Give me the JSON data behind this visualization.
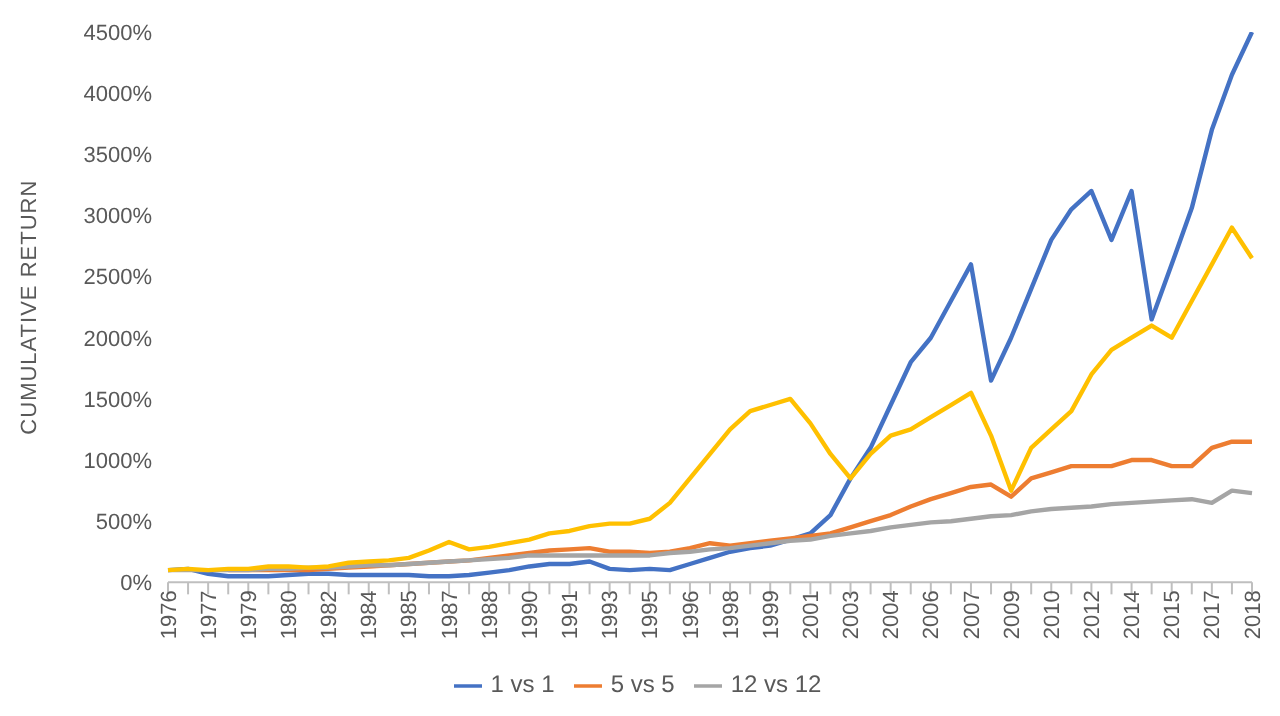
{
  "chart_data": {
    "type": "line",
    "ylabel": "CUMULATIVE RETURN",
    "categories": [
      "1976",
      null,
      "1977",
      null,
      "1979",
      null,
      "1980",
      null,
      "1982",
      null,
      "1984",
      null,
      "1985",
      null,
      "1987",
      null,
      "1988",
      null,
      "1990",
      null,
      "1991",
      null,
      "1993",
      null,
      "1995",
      null,
      "1996",
      null,
      "1998",
      null,
      "1999",
      null,
      "2001",
      null,
      "2003",
      null,
      "2004",
      null,
      "2006",
      null,
      "2007",
      null,
      "2009",
      null,
      "2010",
      null,
      "2012",
      null,
      "2014",
      null,
      "2015",
      null,
      "2017",
      null,
      "2018"
    ],
    "series": [
      {
        "name": "1 vs 1",
        "color": "#4472c4",
        "values": [
          100,
          110,
          70,
          50,
          50,
          50,
          60,
          70,
          70,
          60,
          60,
          60,
          60,
          50,
          50,
          60,
          80,
          100,
          130,
          150,
          150,
          170,
          110,
          100,
          110,
          100,
          150,
          200,
          250,
          280,
          300,
          350,
          400,
          550,
          850,
          1100,
          1450,
          1800,
          2000,
          2300,
          2600,
          1650,
          2000,
          2400,
          2800,
          3050,
          3200,
          2800,
          3200,
          2150,
          2600,
          3060,
          3700,
          4150,
          4500
        ]
      },
      {
        "name": "5 vs 5",
        "color": "#ed7d31",
        "values": [
          null,
          null,
          null,
          100,
          100,
          100,
          100,
          100,
          110,
          120,
          130,
          140,
          150,
          160,
          170,
          180,
          200,
          220,
          240,
          260,
          270,
          280,
          250,
          250,
          240,
          250,
          280,
          320,
          300,
          320,
          340,
          360,
          380,
          400,
          450,
          500,
          550,
          620,
          680,
          730,
          780,
          800,
          700,
          850,
          900,
          950,
          950,
          950,
          1000,
          1000,
          950,
          950,
          1100,
          1150,
          1150
        ]
      },
      {
        "name": "12 vs 12",
        "color": "#a5a5a5",
        "values": [
          100,
          100,
          100,
          100,
          100,
          110,
          110,
          120,
          120,
          130,
          140,
          140,
          150,
          160,
          170,
          180,
          190,
          200,
          220,
          220,
          220,
          220,
          220,
          220,
          220,
          240,
          250,
          270,
          280,
          300,
          320,
          340,
          350,
          380,
          400,
          420,
          450,
          470,
          490,
          500,
          520,
          540,
          550,
          580,
          600,
          610,
          620,
          640,
          650,
          660,
          670,
          680,
          650,
          750,
          730
        ]
      },
      {
        "color": "#ffc000",
        "values": [
          100,
          110,
          100,
          110,
          110,
          130,
          130,
          120,
          130,
          160,
          170,
          180,
          200,
          260,
          330,
          270,
          290,
          320,
          350,
          400,
          420,
          460,
          480,
          480,
          520,
          650,
          850,
          1050,
          1250,
          1400,
          1450,
          1500,
          1300,
          1050,
          850,
          1050,
          1200,
          1250,
          1350,
          1450,
          1550,
          1200,
          750,
          1100,
          1250,
          1400,
          1700,
          1900,
          2000,
          2100,
          2000,
          2300,
          2600,
          2900,
          2650
        ]
      }
    ],
    "ylim": [
      0,
      4500
    ],
    "yticks": [
      {
        "value": 0,
        "label": "0%"
      },
      {
        "value": 500,
        "label": "500%"
      },
      {
        "value": 1000,
        "label": "1000%"
      },
      {
        "value": 1500,
        "label": "1500%"
      },
      {
        "value": 2000,
        "label": "2000%"
      },
      {
        "value": 2500,
        "label": "2500%"
      },
      {
        "value": 3000,
        "label": "3000%"
      },
      {
        "value": 3500,
        "label": "3500%"
      },
      {
        "value": 4000,
        "label": "4000%"
      },
      {
        "value": 4500,
        "label": "4500%"
      }
    ],
    "grid": false,
    "legend": "bottom",
    "marker": "none",
    "line_style": "solid"
  }
}
